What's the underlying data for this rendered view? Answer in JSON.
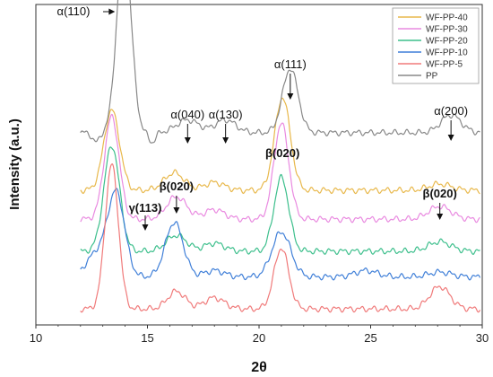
{
  "chart_data": {
    "type": "line",
    "title": "",
    "xlabel": "2θ",
    "ylabel": "Intensity (a.u.)",
    "xlim": [
      10,
      30
    ],
    "xticks": [
      10,
      15,
      20,
      25,
      30
    ],
    "y_ticks_shown": false,
    "grid": false,
    "legend_position": "top-right",
    "series": [
      {
        "name": "WF-PP-40",
        "color": "#e8b84b",
        "baseline": 0.42,
        "peaks": [
          [
            13.4,
            0.25,
            0.35
          ],
          [
            16.2,
            0.055,
            0.45
          ],
          [
            18.0,
            0.025,
            0.45
          ],
          [
            21.05,
            0.29,
            0.35
          ],
          [
            28.1,
            0.02,
            0.5
          ]
        ]
      },
      {
        "name": "WF-PP-30",
        "color": "#e98ae0",
        "baseline": 0.33,
        "peaks": [
          [
            13.4,
            0.32,
            0.33
          ],
          [
            16.3,
            0.07,
            0.45
          ],
          [
            18.0,
            0.03,
            0.45
          ],
          [
            21.0,
            0.3,
            0.33
          ],
          [
            28.1,
            0.04,
            0.5
          ]
        ]
      },
      {
        "name": "WF-PP-20",
        "color": "#3dbf8c",
        "baseline": 0.23,
        "peaks": [
          [
            13.4,
            0.33,
            0.35
          ],
          [
            16.3,
            0.05,
            0.45
          ],
          [
            18.0,
            0.025,
            0.45
          ],
          [
            21.0,
            0.23,
            0.33
          ],
          [
            28.1,
            0.03,
            0.5
          ]
        ]
      },
      {
        "name": "WF-PP-10",
        "color": "#3f7fd8",
        "baseline": 0.15,
        "peaks": [
          [
            12.7,
            0.07,
            0.45
          ],
          [
            13.6,
            0.26,
            0.38
          ],
          [
            16.2,
            0.17,
            0.4
          ],
          [
            18.0,
            0.02,
            0.45
          ],
          [
            21.0,
            0.14,
            0.42
          ],
          [
            24.8,
            0.02,
            0.5
          ],
          [
            28.1,
            0.015,
            0.5
          ]
        ]
      },
      {
        "name": "WF-PP-5",
        "color": "#f07a7a",
        "baseline": 0.05,
        "peaks": [
          [
            13.4,
            0.45,
            0.3
          ],
          [
            16.3,
            0.055,
            0.4
          ],
          [
            18.0,
            0.035,
            0.45
          ],
          [
            21.0,
            0.19,
            0.33
          ],
          [
            28.1,
            0.07,
            0.45
          ]
        ]
      },
      {
        "name": "PP",
        "color": "#888888",
        "baseline": 0.6,
        "peaks": [
          [
            13.95,
            0.6,
            0.32
          ],
          [
            16.8,
            0.04,
            0.5
          ],
          [
            18.5,
            0.04,
            0.45
          ],
          [
            21.4,
            0.2,
            0.35
          ],
          [
            28.6,
            0.055,
            0.45
          ]
        ]
      }
    ],
    "annotations": [
      {
        "text": "α(110)",
        "x": 13.95,
        "bold": false
      },
      {
        "text": "α(040)",
        "x": 16.8,
        "bold": false
      },
      {
        "text": "α(130)",
        "x": 18.5,
        "bold": false
      },
      {
        "text": "α(111)",
        "x": 21.4,
        "bold": false
      },
      {
        "text": "α(200)",
        "x": 28.6,
        "bold": false
      },
      {
        "text": "β(020)",
        "x": 21.05,
        "bold": true
      },
      {
        "text": "β(020)",
        "x": 16.2,
        "bold": true
      },
      {
        "text": "γ(113)",
        "x": 14.9,
        "bold": true
      },
      {
        "text": "β(020)",
        "x": 28.1,
        "bold": true
      }
    ]
  }
}
